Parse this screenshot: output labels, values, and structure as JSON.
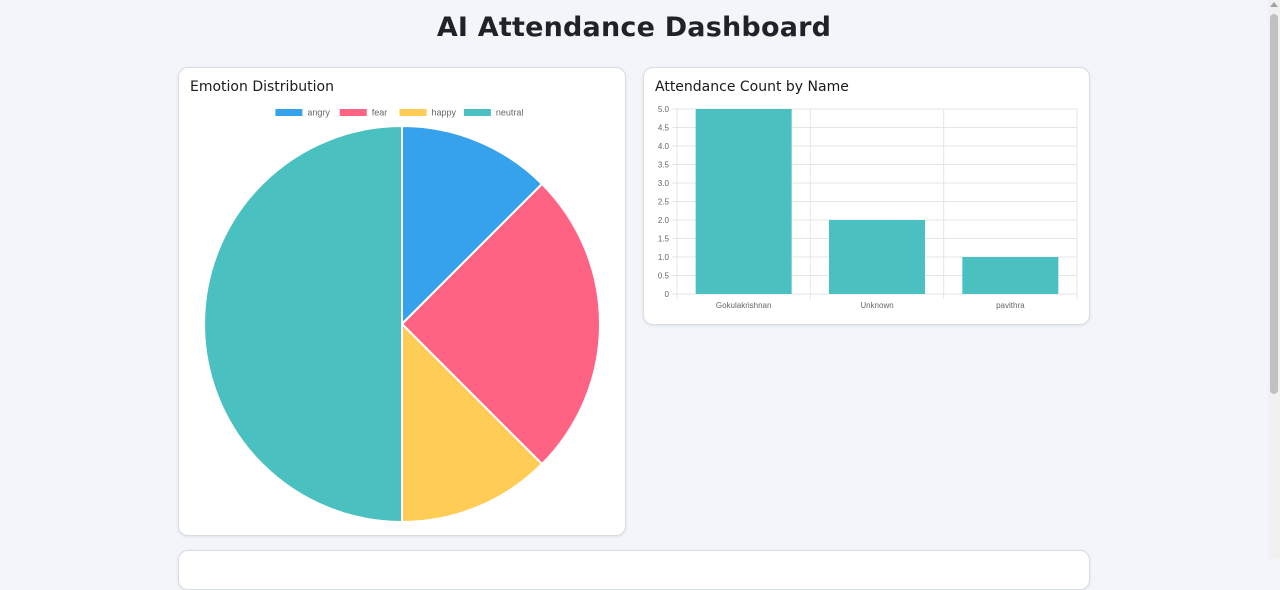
{
  "page": {
    "title": "AI Attendance Dashboard"
  },
  "emotion_card": {
    "title": "Emotion Distribution"
  },
  "attendance_card": {
    "title": "Attendance Count by Name"
  },
  "chart_data": [
    {
      "type": "pie",
      "title": "Emotion Distribution",
      "labels": [
        "angry",
        "fear",
        "happy",
        "neutral"
      ],
      "values": [
        1,
        2,
        1,
        4
      ],
      "colors": [
        "#36a2eb",
        "#ff6384",
        "#ffcd56",
        "#4bc0c0"
      ],
      "legend": "top"
    },
    {
      "type": "bar",
      "title": "Attendance Count by Name",
      "categories": [
        "Gokulakrishnan",
        "Unknown",
        "pavithra"
      ],
      "values": [
        5,
        2,
        1
      ],
      "color": "#4bc0c0",
      "ylim": [
        0,
        5
      ],
      "yticks": [
        "0",
        "0.5",
        "1.0",
        "1.5",
        "2.0",
        "2.5",
        "3.0",
        "3.5",
        "4.0",
        "4.5",
        "5.0"
      ],
      "grid": true
    }
  ]
}
